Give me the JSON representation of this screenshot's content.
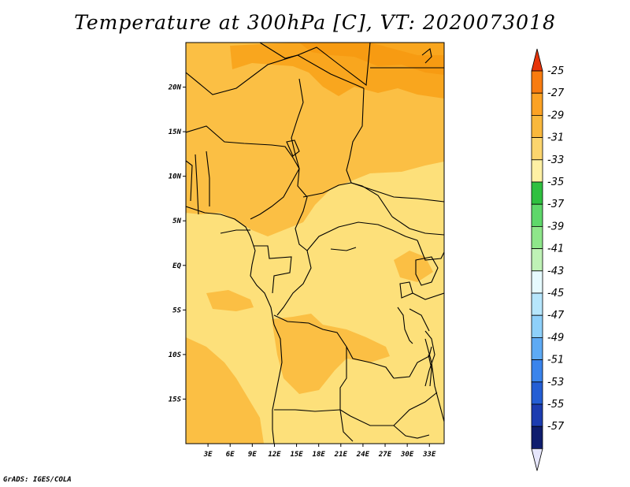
{
  "title": "Temperature at 300hPa [C], VT: 2020073018",
  "credit": "GrADS: IGES/COLA",
  "map": {
    "lon_range": [
      0,
      35
    ],
    "lat_range": [
      -20,
      25
    ],
    "lon_ticks": [
      {
        "lon": 3,
        "label": "3E"
      },
      {
        "lon": 6,
        "label": "6E"
      },
      {
        "lon": 9,
        "label": "9E"
      },
      {
        "lon": 12,
        "label": "12E"
      },
      {
        "lon": 15,
        "label": "15E"
      },
      {
        "lon": 18,
        "label": "18E"
      },
      {
        "lon": 21,
        "label": "21E"
      },
      {
        "lon": 24,
        "label": "24E"
      },
      {
        "lon": 27,
        "label": "27E"
      },
      {
        "lon": 30,
        "label": "30E"
      },
      {
        "lon": 33,
        "label": "33E"
      }
    ],
    "lat_ticks": [
      {
        "lat": 20,
        "label": "20N"
      },
      {
        "lat": 15,
        "label": "15N"
      },
      {
        "lat": 10,
        "label": "10N"
      },
      {
        "lat": 5,
        "label": "5N"
      },
      {
        "lat": 0,
        "label": "EQ"
      },
      {
        "lat": -5,
        "label": "5S"
      },
      {
        "lat": -10,
        "label": "10S"
      },
      {
        "lat": -15,
        "label": "15S"
      }
    ]
  },
  "colorbar": {
    "levels": [
      "-25",
      "-27",
      "-29",
      "-31",
      "-33",
      "-35",
      "-37",
      "-39",
      "-41",
      "-43",
      "-45",
      "-47",
      "-49",
      "-51",
      "-53",
      "-55",
      "-57"
    ],
    "colors": [
      "#e6340a",
      "#f87c10",
      "#fca224",
      "#f9b83c",
      "#fcd56e",
      "#fef0a4",
      "#2fc040",
      "#5ed76a",
      "#8ee68a",
      "#bff2b6",
      "#e6fafe",
      "#b6e6fc",
      "#8ed0fa",
      "#5eaaf4",
      "#3a84ec",
      "#245ed4",
      "#1c3cb0",
      "#0f1d6e",
      "#e6e6fc"
    ]
  },
  "fill_colors": {
    "c_-33": "#fde07a",
    "c_-31": "#fbbf44",
    "c_-29": "#f9a61e",
    "c_-27": "#f79b12"
  }
}
